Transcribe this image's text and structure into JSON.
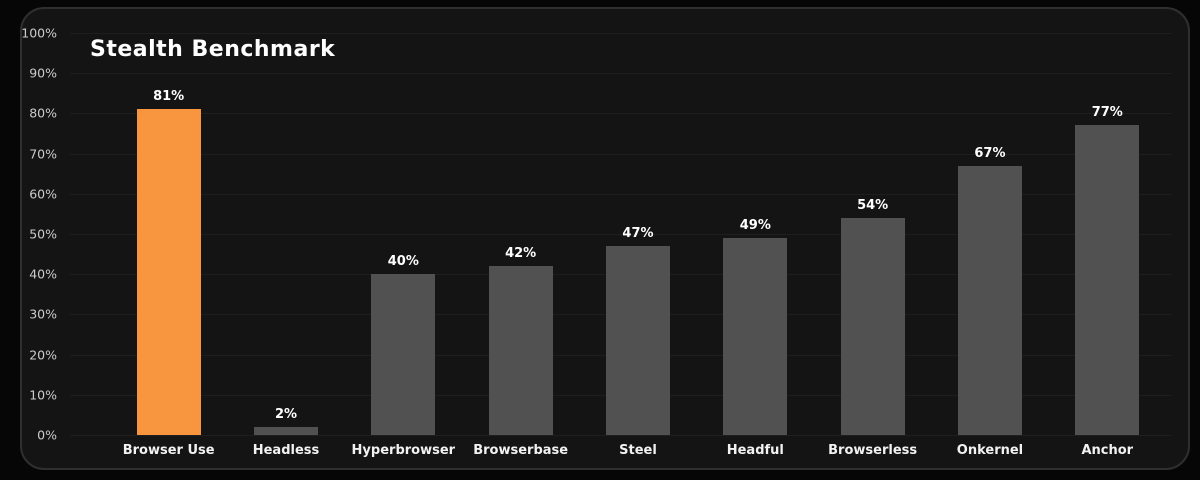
{
  "title": "Stealth Benchmark",
  "colors": {
    "background": "#060606",
    "panel_bg": "#141414",
    "panel_border": "#2f2f2f",
    "gridline": "#1e1e1e",
    "tick_label": "#cbcbcb",
    "bar_default": "#515151",
    "bar_highlight": "#f8953f",
    "value_label": "#ffffff",
    "category_label": "#f2f2f2",
    "title_color": "#ffffff"
  },
  "chart_data": {
    "type": "bar",
    "title": "Stealth Benchmark",
    "categories": [
      "Browser Use",
      "Headless",
      "Hyperbrowser",
      "Browserbase",
      "Steel",
      "Headful",
      "Browserless",
      "Onkernel",
      "Anchor"
    ],
    "values": [
      81,
      2,
      40,
      42,
      47,
      49,
      54,
      67,
      77
    ],
    "value_labels": [
      "81%",
      "2%",
      "40%",
      "42%",
      "47%",
      "49%",
      "54%",
      "67%",
      "77%"
    ],
    "highlight_index": 0,
    "xlabel": "",
    "ylabel": "",
    "ylim": [
      0,
      100
    ],
    "yticks": [
      0,
      10,
      20,
      30,
      40,
      50,
      60,
      70,
      80,
      90,
      100
    ],
    "ytick_labels": [
      "0%",
      "10%",
      "20%",
      "30%",
      "40%",
      "50%",
      "60%",
      "70%",
      "80%",
      "90%",
      "100%"
    ],
    "grid": "horizontal",
    "legend": "none"
  }
}
